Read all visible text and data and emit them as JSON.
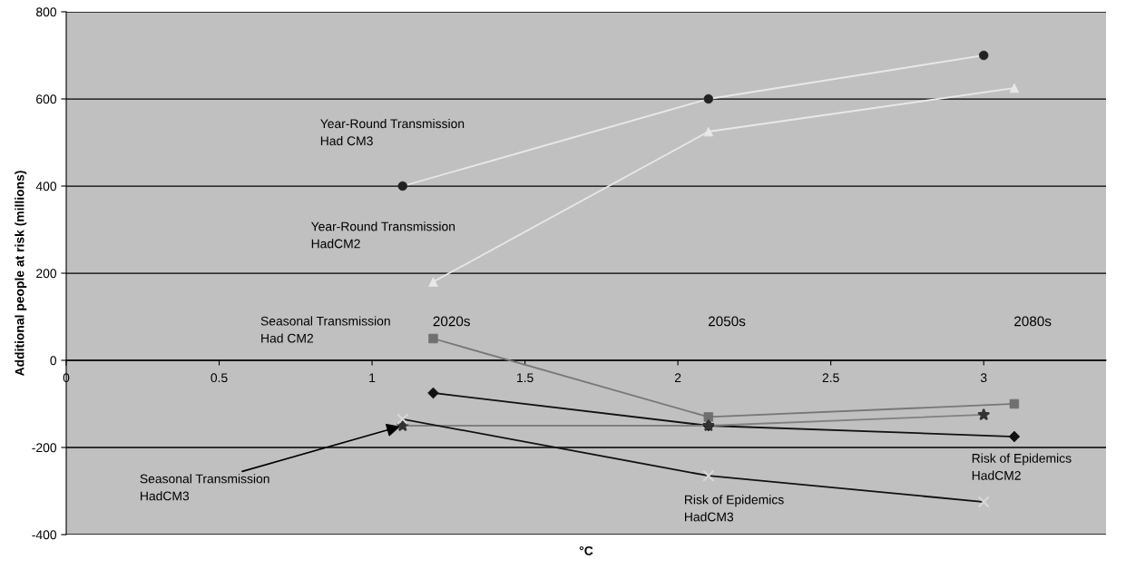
{
  "chart_data": {
    "type": "line",
    "xlabel": "°C",
    "ylabel": "Additional people at risk (millions)",
    "xlim": [
      0,
      3.4
    ],
    "xticks": [
      0,
      0.5,
      1,
      1.5,
      2,
      2.5,
      3
    ],
    "ylim": [
      -400,
      800
    ],
    "yticks": [
      -400,
      -200,
      0,
      200,
      400,
      600,
      800
    ],
    "grid": "y",
    "legend": false,
    "series": [
      {
        "color": "#e8e8e8",
        "colors": [
          "#222222",
          "#222222",
          "#222222"
        ],
        "marker": "circle",
        "x": [
          1.1,
          2.1,
          3.0
        ],
        "values": [
          400,
          600,
          700
        ]
      },
      {
        "color": "#e8e8e8",
        "colors": [
          "#e8e8e8",
          "#e8e8e8",
          "#e8e8e8"
        ],
        "marker": "triangle",
        "x": [
          1.2,
          2.1,
          3.1
        ],
        "values": [
          180,
          525,
          625
        ]
      },
      {
        "color": "#777777",
        "colors": [
          "#707070",
          "#707070",
          "#707070"
        ],
        "marker": "square",
        "x": [
          1.2,
          2.1,
          3.1
        ],
        "values": [
          50,
          -130,
          -100
        ]
      },
      {
        "color": "#111111",
        "colors": [
          "#111111",
          "#111111",
          "#111111"
        ],
        "marker": "diamond",
        "x": [
          1.2,
          2.1,
          3.1
        ],
        "values": [
          -75,
          -150,
          -175
        ]
      },
      {
        "color": "#808080",
        "colors": [
          "#333333",
          "#333333",
          "#333333"
        ],
        "marker": "star",
        "x": [
          1.1,
          2.1,
          3.0
        ],
        "values": [
          -150,
          -150,
          -125
        ]
      },
      {
        "color": "#111111",
        "colors": [
          "#d8d8d8",
          "#d8d8d8",
          "#d8d8d8"
        ],
        "marker": "cross",
        "x": [
          1.1,
          2.1,
          3.0
        ],
        "values": [
          -135,
          -265,
          -325
        ]
      }
    ],
    "annotations": [
      "Year-Round Transmission\nHad CM3",
      "Year-Round Transmission\nHadCM2",
      "Seasonal Transmission\nHad CM2",
      "Risk of Epidemics\nHadCM2",
      {
        "text": "Seasonal Transmission\nHadCM3",
        "x": 1.1,
        "y": -150
      },
      "Risk of Epidemics\nHadCM3",
      "2020s",
      "2050s",
      "2080s"
    ]
  }
}
